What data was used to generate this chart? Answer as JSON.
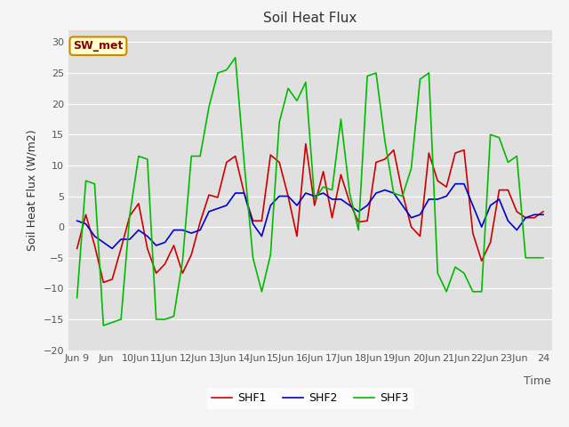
{
  "title": "Soil Heat Flux",
  "ylabel": "Soil Heat Flux (W/m2)",
  "xlabel": "Time",
  "ylim": [
    -20,
    32
  ],
  "yticks": [
    -20,
    -15,
    -10,
    -5,
    0,
    5,
    10,
    15,
    20,
    25,
    30
  ],
  "xtick_labels": [
    "Jun 9",
    "Jun",
    "10Jun",
    "11Jun",
    "12Jun",
    "13Jun",
    "14Jun",
    "15Jun",
    "16Jun",
    "17Jun",
    "18Jun",
    "19Jun",
    "20Jun",
    "21Jun",
    "22Jun",
    "23Jun",
    "24"
  ],
  "plot_bg_color": "#e0e0e0",
  "fig_bg_color": "#f5f5f5",
  "line_colors": {
    "SHF1": "#cc0000",
    "SHF2": "#0000cc",
    "SHF3": "#00bb00"
  },
  "annotation_text": "SW_met",
  "annotation_bg": "#ffffcc",
  "annotation_border": "#cc8800",
  "annotation_text_color": "#880000",
  "shf1": [
    -3.5,
    2.0,
    -3.0,
    -9.0,
    -8.5,
    -3.5,
    1.8,
    3.8,
    -3.5,
    -7.5,
    -6.0,
    -3.0,
    -7.5,
    -4.5,
    0.8,
    5.2,
    4.8,
    10.5,
    11.5,
    5.5,
    1.0,
    1.0,
    11.7,
    10.5,
    5.0,
    -1.5,
    13.5,
    3.5,
    9.0,
    1.5,
    8.5,
    4.0,
    0.8,
    1.0,
    10.5,
    11.0,
    12.5,
    5.5,
    0.0,
    -1.5,
    12.0,
    7.5,
    6.5,
    12.0,
    12.5,
    -1.0,
    -5.5,
    -2.5,
    6.0,
    6.0,
    2.5,
    1.5,
    1.5,
    2.5
  ],
  "shf2": [
    1.0,
    0.5,
    -1.5,
    -2.5,
    -3.5,
    -2.0,
    -2.0,
    -0.5,
    -1.5,
    -3.0,
    -2.5,
    -0.5,
    -0.5,
    -1.0,
    -0.5,
    2.5,
    3.0,
    3.5,
    5.5,
    5.5,
    0.5,
    -1.5,
    3.5,
    5.0,
    5.0,
    3.5,
    5.5,
    5.0,
    5.5,
    4.5,
    4.5,
    3.5,
    2.5,
    3.5,
    5.5,
    6.0,
    5.5,
    3.5,
    1.5,
    2.0,
    4.5,
    4.5,
    5.0,
    7.0,
    7.0,
    3.5,
    0.0,
    3.5,
    4.5,
    1.0,
    -0.5,
    1.5,
    2.0,
    2.0
  ],
  "shf3": [
    -11.5,
    7.5,
    7.0,
    -16.0,
    -15.5,
    -15.0,
    2.0,
    11.5,
    11.0,
    -15.0,
    -15.0,
    -14.5,
    -5.5,
    11.5,
    11.5,
    19.5,
    25.0,
    25.5,
    27.5,
    10.5,
    -5.0,
    -10.5,
    -4.5,
    17.0,
    22.5,
    20.5,
    23.5,
    4.5,
    6.5,
    6.0,
    17.5,
    5.5,
    -0.5,
    24.5,
    25.0,
    14.0,
    5.5,
    5.0,
    9.5,
    24.0,
    25.0,
    -7.5,
    -10.5,
    -6.5,
    -7.5,
    -10.5,
    -10.5,
    15.0,
    14.5,
    10.5,
    11.5,
    -5.0,
    -5.0,
    -5.0
  ]
}
